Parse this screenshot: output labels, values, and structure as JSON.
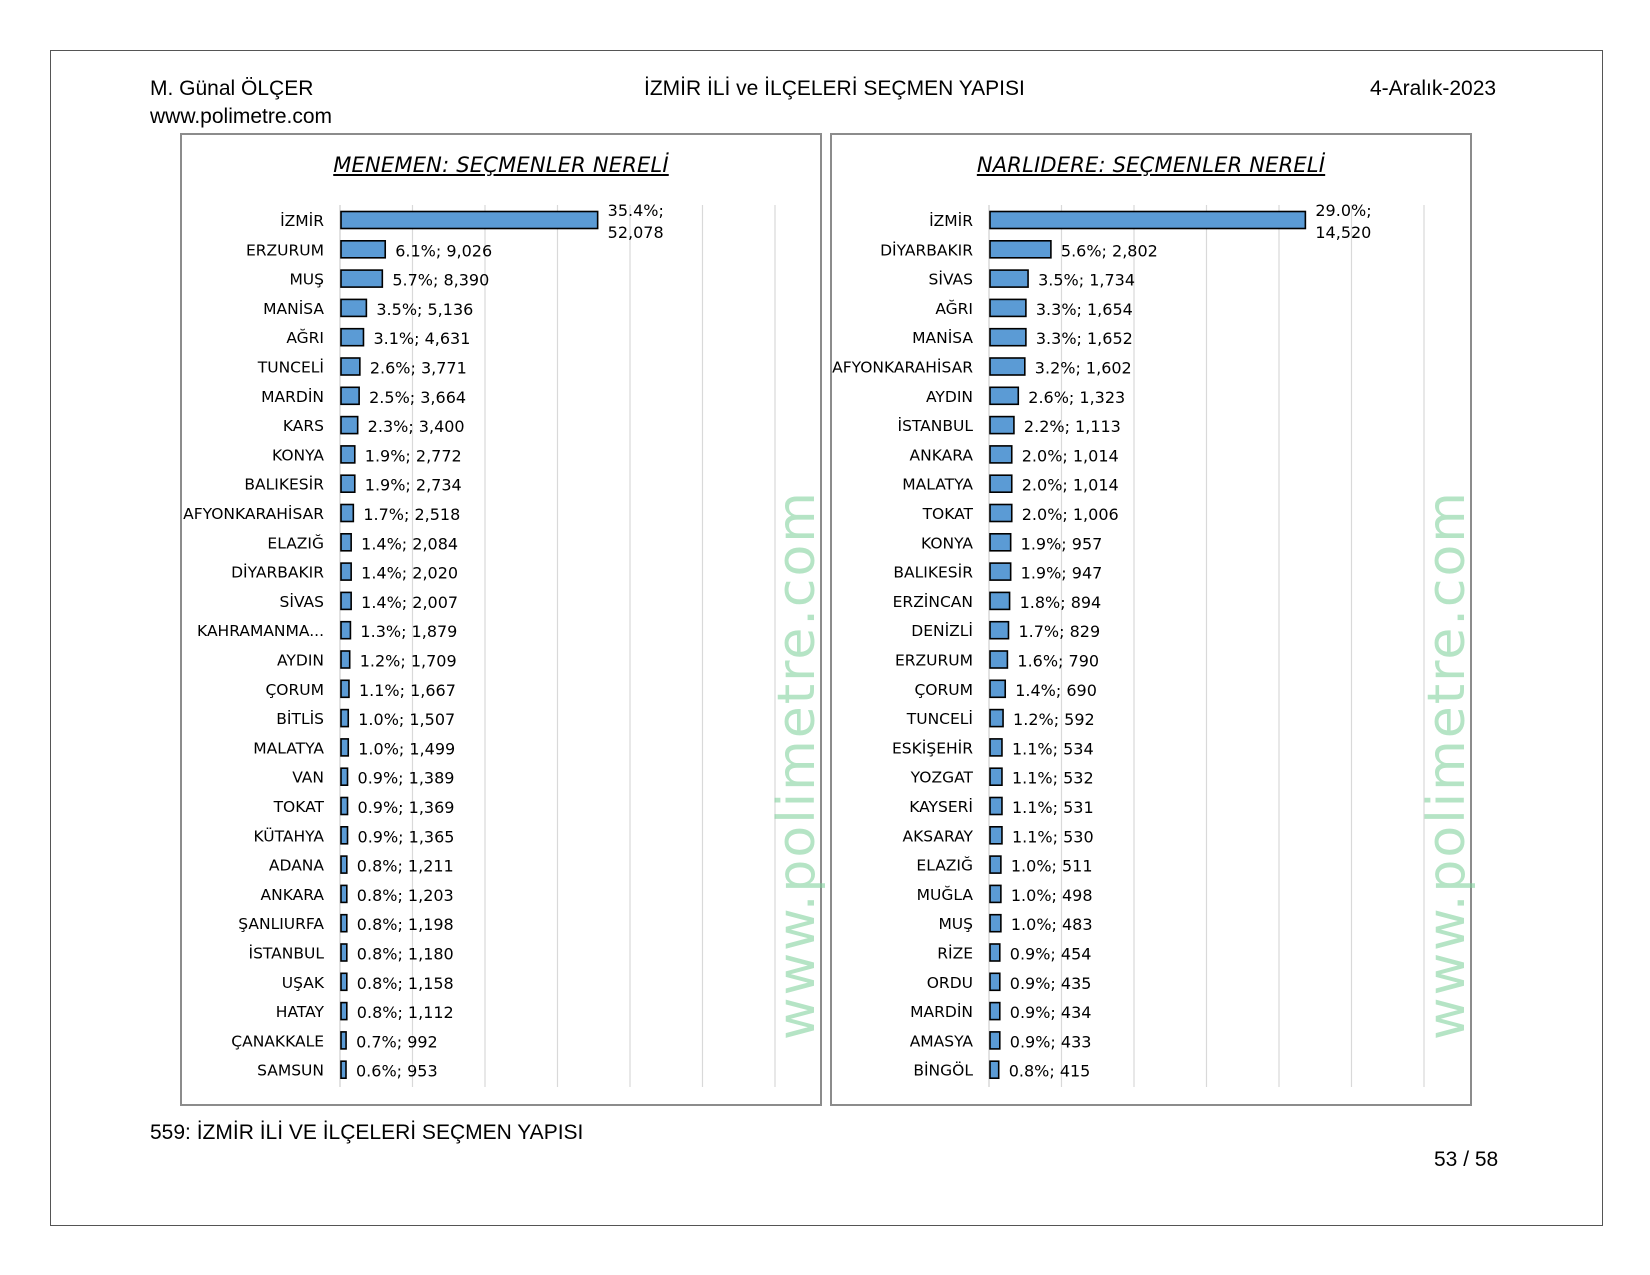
{
  "header": {
    "author": "M. Günal ÖLÇER",
    "website": "www.polimetre.com",
    "title": "İZMİR İLİ ve İLÇELERİ SEÇMEN YAPISI",
    "date": "4-Aralık-2023"
  },
  "footer": {
    "caption": "559: İZMİR İLİ VE İLÇELERİ SEÇMEN YAPISI",
    "page": "53 / 58"
  },
  "watermark": "www.polimetre.com",
  "colors": {
    "bar_fill": "#5b9bd5",
    "bar_stroke": "#000000",
    "grid": "#d9d9d9",
    "watermark": "#78cd96"
  },
  "chart_data": [
    {
      "type": "bar",
      "orientation": "horizontal",
      "title": "MENEMEN: SEÇMENLER NERELİ",
      "xlim": [
        0,
        60
      ],
      "categories": [
        "İZMİR",
        "ERZURUM",
        "MUŞ",
        "MANİSA",
        "AĞRI",
        "TUNCELİ",
        "MARDİN",
        "KARS",
        "KONYA",
        "BALIKESİR",
        "AFYONKARAHİSAR",
        "ELAZIĞ",
        "DİYARBAKIR",
        "SİVAS",
        "KAHRAMANMA...",
        "AYDIN",
        "ÇORUM",
        "BİTLİS",
        "MALATYA",
        "VAN",
        "TOKAT",
        "KÜTAHYA",
        "ADANA",
        "ANKARA",
        "ŞANLIURFA",
        "İSTANBUL",
        "UŞAK",
        "HATAY",
        "ÇANAKKALE",
        "SAMSUN"
      ],
      "values": [
        35.4,
        6.1,
        5.7,
        3.5,
        3.1,
        2.6,
        2.5,
        2.3,
        1.9,
        1.9,
        1.7,
        1.4,
        1.4,
        1.4,
        1.3,
        1.2,
        1.1,
        1.0,
        1.0,
        0.9,
        0.9,
        0.9,
        0.8,
        0.8,
        0.8,
        0.8,
        0.8,
        0.8,
        0.7,
        0.6
      ],
      "counts": [
        52078,
        9026,
        8390,
        5136,
        4631,
        3771,
        3664,
        3400,
        2772,
        2734,
        2518,
        2084,
        2020,
        2007,
        1879,
        1709,
        1667,
        1507,
        1499,
        1389,
        1369,
        1365,
        1211,
        1203,
        1198,
        1180,
        1158,
        1112,
        992,
        953
      ],
      "labels": [
        "35.4%; 52,078",
        "6.1%; 9,026",
        "5.7%; 8,390",
        "3.5%; 5,136",
        "3.1%; 4,631",
        "2.6%; 3,771",
        "2.5%; 3,664",
        "2.3%; 3,400",
        "1.9%; 2,772",
        "1.9%; 2,734",
        "1.7%; 2,518",
        "1.4%; 2,084",
        "1.4%; 2,020",
        "1.4%; 2,007",
        "1.3%; 1,879",
        "1.2%; 1,709",
        "1.1%; 1,667",
        "1.0%; 1,507",
        "1.0%; 1,499",
        "0.9%; 1,389",
        "0.9%; 1,369",
        "0.9%; 1,365",
        "0.8%; 1,211",
        "0.8%; 1,203",
        "0.8%; 1,198",
        "0.8%; 1,180",
        "0.8%; 1,158",
        "0.8%; 1,112",
        "0.7%; 992",
        "0.6%; 953"
      ],
      "grid": true
    },
    {
      "type": "bar",
      "orientation": "horizontal",
      "title": "NARLIDERE: SEÇMENLER NERELİ",
      "xlim": [
        0,
        40
      ],
      "categories": [
        "İZMİR",
        "DİYARBAKIR",
        "SİVAS",
        "AĞRI",
        "MANİSA",
        "AFYONKARAHİSAR",
        "AYDIN",
        "İSTANBUL",
        "ANKARA",
        "MALATYA",
        "TOKAT",
        "KONYA",
        "BALIKESİR",
        "ERZİNCAN",
        "DENİZLİ",
        "ERZURUM",
        "ÇORUM",
        "TUNCELİ",
        "ESKİŞEHİR",
        "YOZGAT",
        "KAYSERİ",
        "AKSARAY",
        "ELAZIĞ",
        "MUĞLA",
        "MUŞ",
        "RİZE",
        "ORDU",
        "MARDİN",
        "AMASYA",
        "BİNGÖL"
      ],
      "values": [
        29.0,
        5.6,
        3.5,
        3.3,
        3.3,
        3.2,
        2.6,
        2.2,
        2.0,
        2.0,
        2.0,
        1.9,
        1.9,
        1.8,
        1.7,
        1.6,
        1.4,
        1.2,
        1.1,
        1.1,
        1.1,
        1.1,
        1.0,
        1.0,
        1.0,
        0.9,
        0.9,
        0.9,
        0.9,
        0.8
      ],
      "counts": [
        14520,
        2802,
        1734,
        1654,
        1652,
        1602,
        1323,
        1113,
        1014,
        1014,
        1006,
        957,
        947,
        894,
        829,
        790,
        690,
        592,
        534,
        532,
        531,
        530,
        511,
        498,
        483,
        454,
        435,
        434,
        433,
        415
      ],
      "labels": [
        "29.0%; 14,520",
        "5.6%; 2,802",
        "3.5%; 1,734",
        "3.3%; 1,654",
        "3.3%; 1,652",
        "3.2%; 1,602",
        "2.6%; 1,323",
        "2.2%; 1,113",
        "2.0%; 1,014",
        "2.0%; 1,014",
        "2.0%; 1,006",
        "1.9%; 957",
        "1.9%; 947",
        "1.8%; 894",
        "1.7%; 829",
        "1.6%; 790",
        "1.4%; 690",
        "1.2%; 592",
        "1.1%; 534",
        "1.1%; 532",
        "1.1%; 531",
        "1.1%; 530",
        "1.0%; 511",
        "1.0%; 498",
        "1.0%; 483",
        "0.9%; 454",
        "0.9%; 435",
        "0.9%; 434",
        "0.9%; 433",
        "0.8%; 415"
      ],
      "grid": true
    }
  ]
}
